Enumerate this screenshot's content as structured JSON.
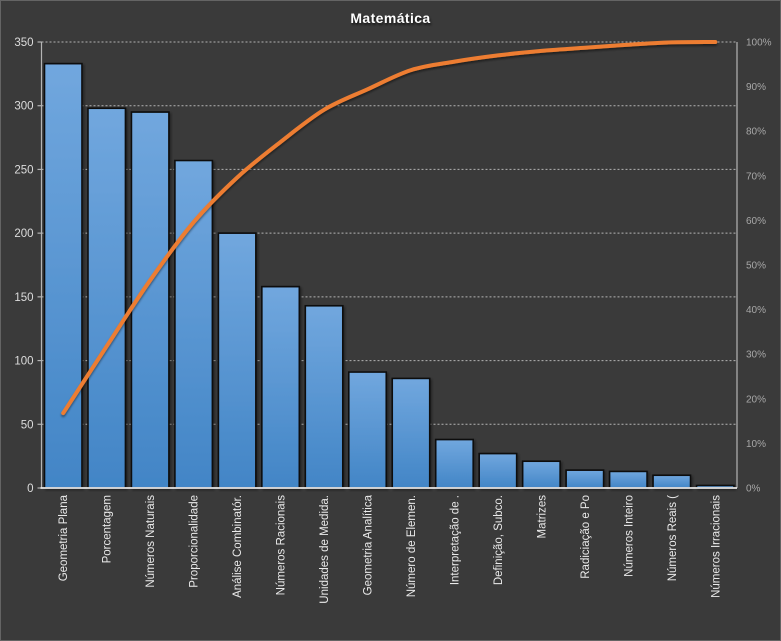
{
  "title": "Matemática",
  "chart_data": {
    "type": "bar",
    "subtype": "pareto (bars + cumulative % line)",
    "title": "Matemática",
    "categories": [
      "Geometria Plana",
      "Porcentagem",
      "Números Naturais",
      "Proporcionalidade",
      "Análise Combinatór.",
      "Números Racionais",
      "Unidades de Medida.",
      "Geometria Analítica",
      "Número de Elemen.",
      "Interpretação de .",
      "Definição, Subco.",
      "Matrizes",
      "Radiciação e Po",
      "Números Inteiro",
      "Números Reais (",
      "Números Irracionais"
    ],
    "bar_values": [
      333,
      298,
      295,
      257,
      200,
      158,
      143,
      91,
      86,
      38,
      27,
      21,
      14,
      13,
      10,
      2
    ],
    "cumulative_line_pct": [
      16.8,
      31.8,
      46.6,
      59.6,
      69.6,
      77.6,
      84.8,
      89.4,
      93.7,
      95.6,
      97.0,
      98.0,
      98.7,
      99.4,
      99.9,
      100
    ],
    "left_axis": {
      "min": 0,
      "max": 350,
      "step": 50,
      "tick_labels": [
        "0",
        "50",
        "100",
        "150",
        "200",
        "250",
        "300",
        "350"
      ]
    },
    "right_axis": {
      "min": 0,
      "max": 100,
      "step": 10,
      "tick_labels": [
        "0%",
        "10%",
        "20%",
        "30%",
        "40%",
        "50%",
        "60%",
        "70%",
        "80%",
        "90%",
        "100%"
      ]
    },
    "grid": "dashed horizontal gridlines at every 50 of left axis",
    "legend_position": "none",
    "colors": {
      "background": "#3a3a3a",
      "bar_fill_top": "#71a7de",
      "bar_fill_bottom": "#4285c6",
      "bar_stroke": "#0e0e0e",
      "line": "#ed7d31",
      "gridline": "#c9c9c9",
      "axis_line": "#b4b4b4",
      "bottom_axis_line": "#e8e8e8",
      "left_tick_text": "#dcdcdc",
      "right_tick_text": "#a8a8a8",
      "category_text": "#eaeaea",
      "title_text": "#ffffff"
    }
  }
}
